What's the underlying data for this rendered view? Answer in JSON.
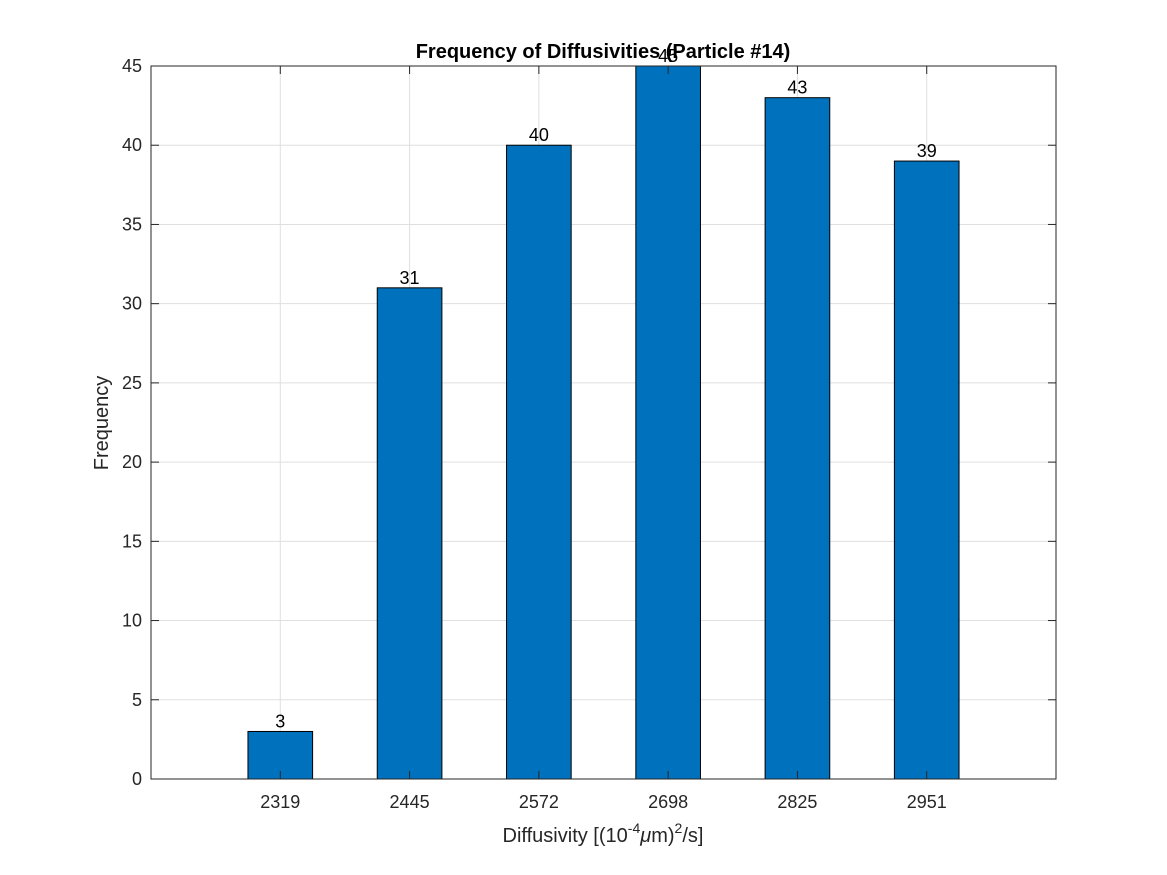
{
  "chart_data": {
    "type": "bar",
    "title": "Frequency of Diffusivities (Particle #14)",
    "xlabel": {
      "prefix": "Diffusivity [(10",
      "exponent": "-4",
      "mu": "μ",
      "middle": "m)",
      "square": "2",
      "suffix": "/s]"
    },
    "ylabel": "Frequency",
    "categories": [
      "2319",
      "2445",
      "2572",
      "2698",
      "2825",
      "2951"
    ],
    "values": [
      3,
      31,
      40,
      45,
      43,
      39
    ],
    "data_labels": [
      "3",
      "31",
      "40",
      "45",
      "43",
      "39"
    ],
    "ylim": [
      0,
      45
    ],
    "yticks": [
      0,
      5,
      10,
      15,
      20,
      25,
      30,
      35,
      40,
      45
    ],
    "grid": true,
    "bar_color": "#0072BD",
    "bar_edge_color": "#000000"
  }
}
